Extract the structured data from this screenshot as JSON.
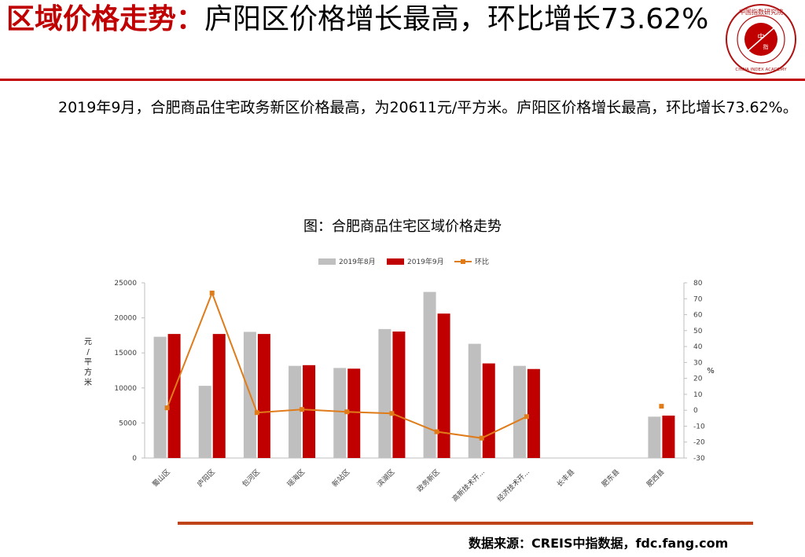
{
  "header": {
    "title_accent": "区域价格走势：",
    "title_rest": "庐阳区价格增长最高，环比增长73.62%"
  },
  "paragraph": "2019年9月，合肥商品住宅政务新区价格最高，为20611元/平方米。庐阳区价格增长最高，环比增长73.62%。",
  "logo": {
    "text_top": "中国指数研究院",
    "text_bottom": "CHINA INDEX ACADEMY",
    "center_top": "中",
    "center_bottom": "指"
  },
  "footer": {
    "source": "数据来源：CREIS中指数据，fdc.fang.com"
  },
  "colors": {
    "accent_red": "#c00000",
    "bar_aug": "#bfbfbf",
    "bar_sep": "#c00000",
    "line_mom": "#e07b1a",
    "rule_bottom": "#c0441a"
  },
  "chart_data": {
    "type": "bar",
    "title": "图：合肥商品住宅区域价格走势",
    "categories": [
      "蜀山区",
      "庐阳区",
      "包河区",
      "瑶海区",
      "新站区",
      "滨湖区",
      "政务新区",
      "高新技术开...",
      "经济技术开...",
      "长丰县",
      "肥东县",
      "肥西县"
    ],
    "series": [
      {
        "name": "2019年8月",
        "type": "bar",
        "axis": "left",
        "values": [
          17300,
          10300,
          18000,
          13150,
          12850,
          18400,
          23700,
          16300,
          13150,
          null,
          null,
          5900
        ]
      },
      {
        "name": "2019年9月",
        "type": "bar",
        "axis": "left",
        "values": [
          17700,
          17700,
          17700,
          13250,
          12750,
          18050,
          20611,
          13500,
          12700,
          null,
          null,
          6050
        ]
      },
      {
        "name": "环比",
        "type": "line",
        "axis": "right",
        "values": [
          1.5,
          73.62,
          -1.5,
          0.5,
          -1,
          -2,
          -13.5,
          -17.5,
          -4,
          null,
          null,
          2.5
        ]
      }
    ],
    "ylabel_left": "元/平方米",
    "ylabel_right": "%",
    "ylim_left": [
      0,
      25000
    ],
    "yticks_left": [
      "0",
      "5000",
      "10000",
      "15000",
      "20000",
      "25000"
    ],
    "ylim_right": [
      -30,
      80
    ],
    "yticks_right": [
      "-30",
      "-20",
      "-10",
      "0",
      "10",
      "20",
      "30",
      "40",
      "50",
      "60",
      "70",
      "80"
    ],
    "legend": [
      "2019年8月",
      "2019年9月",
      "环比"
    ],
    "legend_position": "top",
    "grid": false
  }
}
